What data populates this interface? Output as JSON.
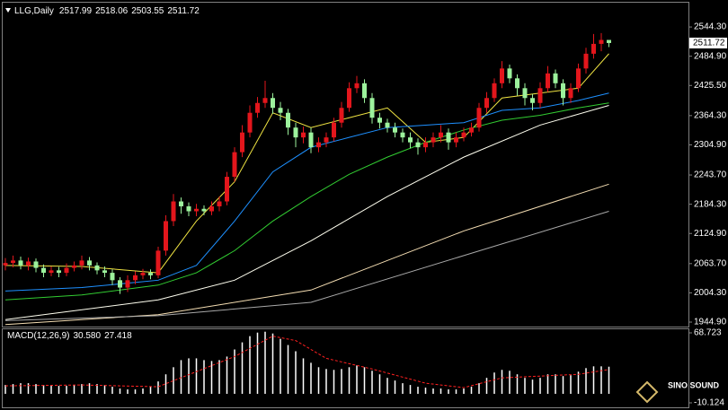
{
  "chart_data": [
    {
      "type": "candlestick",
      "title": "LLG,Daily",
      "open": [
        2060,
        2065,
        2070,
        2060,
        2068,
        2055,
        2045,
        2050,
        2045,
        2055,
        2060,
        2070,
        2060,
        2050,
        2045,
        2030,
        2015,
        2030,
        2040,
        2045,
        2040,
        2090,
        2150,
        2190,
        2180,
        2170,
        2175,
        2170,
        2180,
        2190,
        2240,
        2290,
        2330,
        2370,
        2390,
        2400,
        2380,
        2370,
        2340,
        2320,
        2330,
        2300,
        2310,
        2320,
        2350,
        2380,
        2420,
        2430,
        2400,
        2360,
        2350,
        2340,
        2330,
        2320,
        2310,
        2300,
        2310,
        2320,
        2330,
        2310,
        2320,
        2330,
        2340,
        2380,
        2400,
        2430,
        2460,
        2440,
        2420,
        2400,
        2390,
        2420,
        2450,
        2430,
        2400,
        2420,
        2460,
        2490,
        2510,
        2517.99
      ],
      "high": [
        2075,
        2080,
        2078,
        2076,
        2074,
        2062,
        2058,
        2057,
        2064,
        2068,
        2080,
        2077,
        2066,
        2058,
        2052,
        2036,
        2040,
        2048,
        2053,
        2052,
        2098,
        2162,
        2205,
        2198,
        2188,
        2185,
        2182,
        2190,
        2200,
        2250,
        2300,
        2345,
        2385,
        2402,
        2435,
        2410,
        2392,
        2378,
        2350,
        2342,
        2340,
        2320,
        2330,
        2360,
        2392,
        2432,
        2445,
        2438,
        2410,
        2370,
        2358,
        2350,
        2338,
        2330,
        2318,
        2320,
        2330,
        2345,
        2338,
        2330,
        2340,
        2350,
        2390,
        2412,
        2440,
        2475,
        2468,
        2448,
        2430,
        2408,
        2432,
        2465,
        2458,
        2438,
        2430,
        2470,
        2502,
        2530,
        2532,
        2518.06
      ],
      "low": [
        2050,
        2056,
        2052,
        2050,
        2046,
        2036,
        2038,
        2036,
        2038,
        2048,
        2052,
        2050,
        2042,
        2036,
        2020,
        2002,
        2006,
        2022,
        2032,
        2032,
        2034,
        2080,
        2140,
        2165,
        2160,
        2160,
        2162,
        2162,
        2170,
        2182,
        2230,
        2280,
        2320,
        2360,
        2380,
        2368,
        2355,
        2325,
        2300,
        2308,
        2288,
        2290,
        2300,
        2312,
        2340,
        2372,
        2410,
        2390,
        2348,
        2338,
        2330,
        2320,
        2310,
        2298,
        2285,
        2290,
        2300,
        2310,
        2295,
        2300,
        2312,
        2322,
        2332,
        2370,
        2392,
        2420,
        2430,
        2405,
        2385,
        2375,
        2380,
        2412,
        2420,
        2385,
        2390,
        2412,
        2450,
        2480,
        2495,
        2503.55
      ],
      "close": [
        2065,
        2070,
        2060,
        2068,
        2055,
        2045,
        2050,
        2045,
        2055,
        2060,
        2070,
        2060,
        2050,
        2045,
        2030,
        2015,
        2030,
        2040,
        2045,
        2040,
        2090,
        2150,
        2190,
        2180,
        2170,
        2175,
        2170,
        2180,
        2190,
        2240,
        2290,
        2330,
        2370,
        2390,
        2400,
        2380,
        2370,
        2340,
        2320,
        2330,
        2300,
        2310,
        2320,
        2350,
        2380,
        2420,
        2430,
        2400,
        2360,
        2350,
        2340,
        2330,
        2320,
        2310,
        2300,
        2310,
        2320,
        2330,
        2310,
        2320,
        2330,
        2340,
        2380,
        2400,
        2430,
        2460,
        2440,
        2420,
        2400,
        2390,
        2420,
        2450,
        2430,
        2400,
        2420,
        2460,
        2490,
        2510,
        2518,
        2511.72
      ],
      "up_color": "#e3161c",
      "down_color": "#9cf29c",
      "overlays": [
        {
          "color": "#f0e442",
          "x": [
            0,
            10,
            20,
            25,
            30,
            35,
            40,
            45,
            50,
            55,
            60,
            65,
            70,
            75,
            79
          ],
          "values": [
            2060,
            2058,
            2045,
            2150,
            2230,
            2370,
            2340,
            2360,
            2380,
            2310,
            2320,
            2400,
            2410,
            2420,
            2490
          ]
        },
        {
          "color": "#1e90ff",
          "x": [
            0,
            10,
            20,
            25,
            30,
            35,
            40,
            45,
            50,
            55,
            60,
            65,
            70,
            75,
            79
          ],
          "values": [
            2008,
            2015,
            2030,
            2060,
            2150,
            2250,
            2300,
            2320,
            2340,
            2345,
            2350,
            2375,
            2380,
            2395,
            2410
          ]
        },
        {
          "color": "#32cd32",
          "x": [
            0,
            10,
            20,
            25,
            30,
            35,
            40,
            45,
            50,
            55,
            60,
            65,
            70,
            75,
            79
          ],
          "values": [
            1990,
            2000,
            2020,
            2045,
            2090,
            2150,
            2200,
            2245,
            2280,
            2310,
            2335,
            2355,
            2365,
            2380,
            2390
          ]
        },
        {
          "color": "#fffff0",
          "x": [
            0,
            20,
            30,
            40,
            50,
            60,
            70,
            79
          ],
          "values": [
            1950,
            1990,
            2030,
            2110,
            2200,
            2280,
            2345,
            2385
          ]
        },
        {
          "color": "#f5deb3",
          "x": [
            0,
            20,
            40,
            60,
            79
          ],
          "values": [
            1940,
            1960,
            2010,
            2130,
            2225
          ]
        },
        {
          "color": "#a9a9a9",
          "x": [
            0,
            20,
            40,
            60,
            79
          ],
          "values": [
            1948,
            1958,
            1985,
            2080,
            2170
          ]
        }
      ],
      "ylim": [
        1934,
        2590
      ],
      "yticks": [
        {
          "value": 2544.3,
          "label": "2544.30"
        },
        {
          "value": 2484.9,
          "label": "2484.90"
        },
        {
          "value": 2425.5,
          "label": "2425.50"
        },
        {
          "value": 2364.3,
          "label": "2364.30"
        },
        {
          "value": 2304.9,
          "label": "2304.90"
        },
        {
          "value": 2243.7,
          "label": "2243.70"
        },
        {
          "value": 2184.3,
          "label": "2184.30"
        },
        {
          "value": 2124.9,
          "label": "2124.90"
        },
        {
          "value": 2063.7,
          "label": "2063.70"
        },
        {
          "value": 2004.3,
          "label": "2004.30"
        },
        {
          "value": 1944.9,
          "label": "1944.90"
        }
      ]
    },
    {
      "type": "macd",
      "title": "MACD(12,26,9)",
      "readout": [
        {
          "value": 30.58,
          "label": "30.580"
        },
        {
          "value": 27.418,
          "label": "27.418"
        }
      ],
      "histogram": [
        10,
        11,
        12,
        12,
        11,
        10,
        9,
        9,
        9,
        10,
        11,
        12,
        11,
        10,
        8,
        6,
        5,
        5,
        6,
        8,
        14,
        22,
        30,
        38,
        40,
        40,
        38,
        37,
        38,
        42,
        50,
        58,
        65,
        69,
        70,
        68,
        62,
        55,
        48,
        40,
        35,
        30,
        28,
        27,
        28,
        30,
        32,
        30,
        26,
        22,
        18,
        15,
        12,
        10,
        8,
        7,
        6,
        6,
        5,
        5,
        6,
        8,
        12,
        18,
        24,
        27,
        26,
        22,
        18,
        16,
        18,
        22,
        22,
        20,
        21,
        25,
        29,
        31,
        31,
        30.58
      ],
      "histogram_color": "#ffffff",
      "signal": {
        "color": "#ff2020",
        "x": [
          0,
          10,
          20,
          25,
          30,
          35,
          38,
          42,
          48,
          55,
          60,
          65,
          70,
          75,
          79
        ],
        "values": [
          9,
          10,
          8,
          25,
          42,
          65,
          60,
          40,
          28,
          12,
          7,
          18,
          20,
          22,
          27.418
        ]
      },
      "ylim": [
        -10.124,
        68.723
      ],
      "yticks": [
        {
          "value": 68.723,
          "label": "68.723"
        },
        {
          "value": -10.124,
          "label": "-10.124"
        }
      ]
    }
  ],
  "watermark": "SINO SOUND"
}
